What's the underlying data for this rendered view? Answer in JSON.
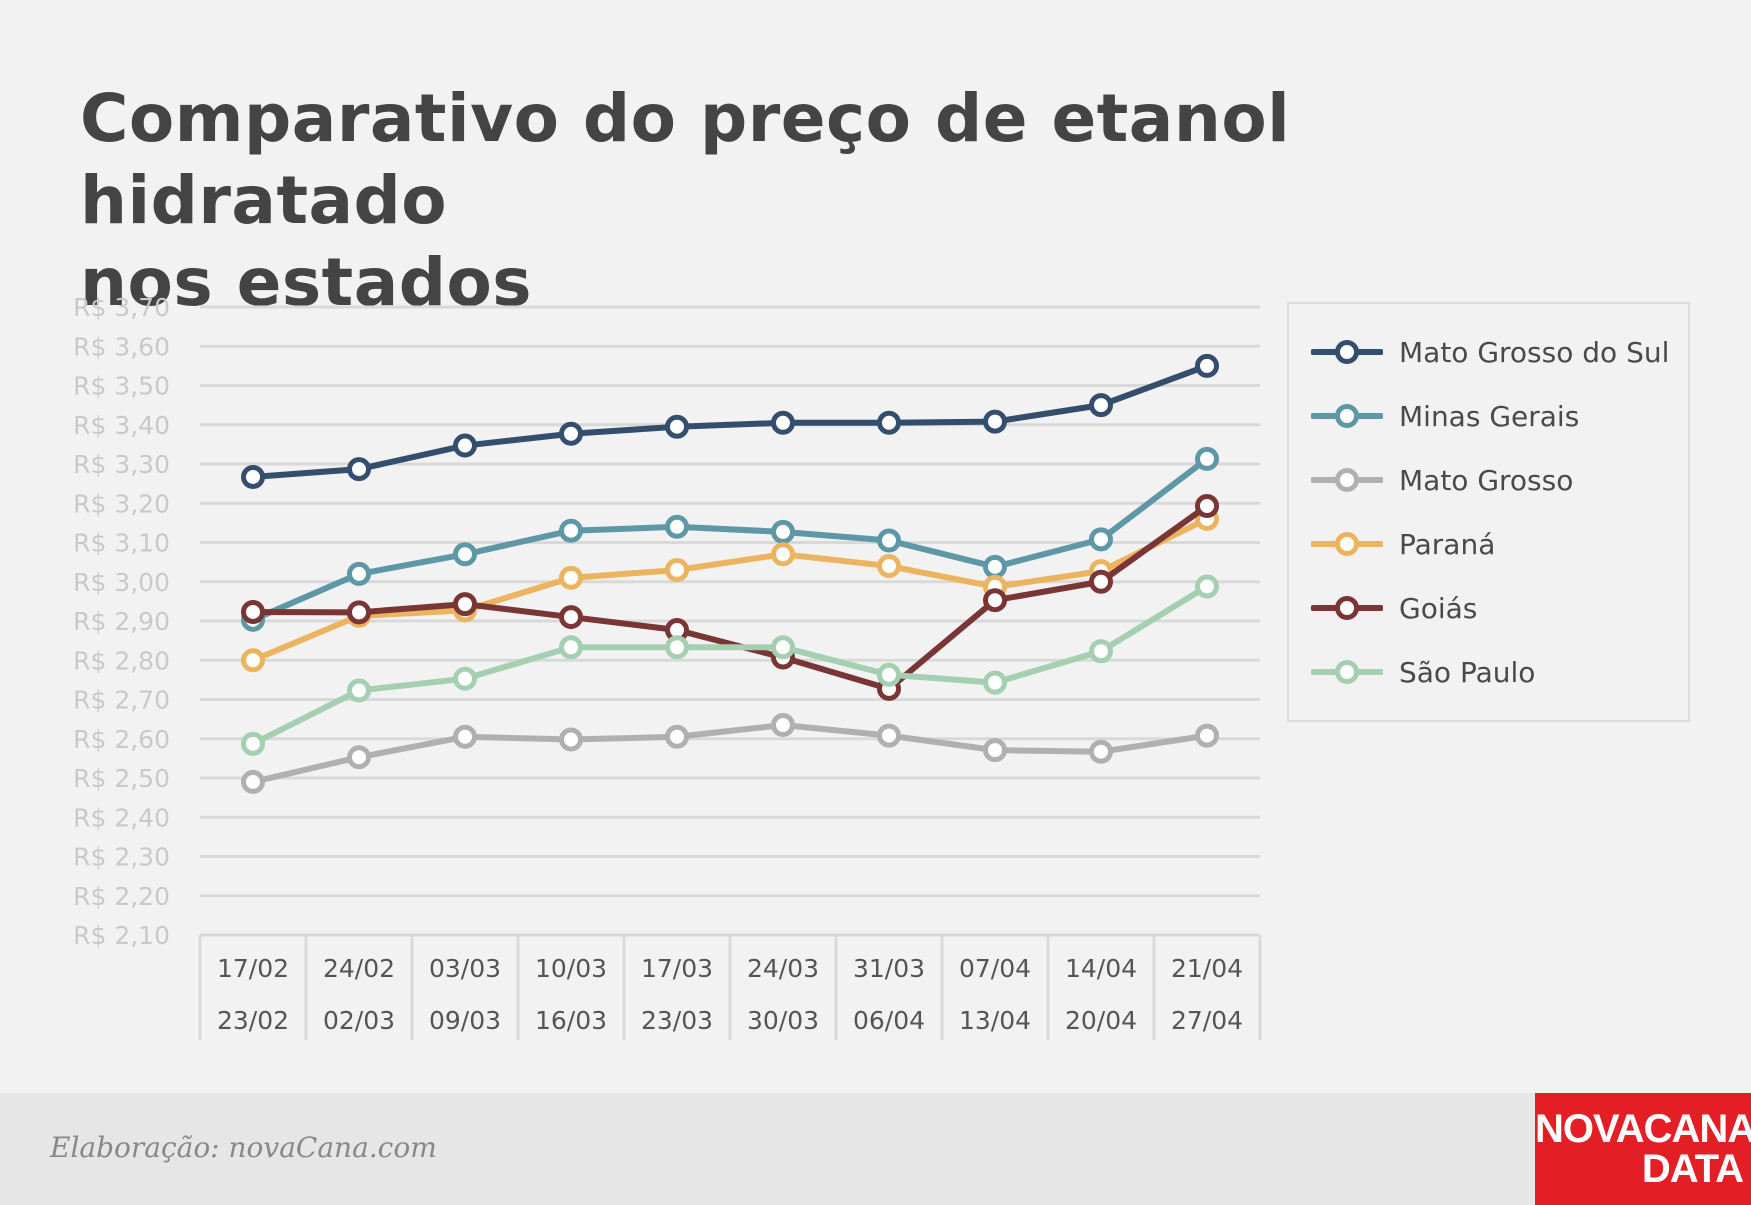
{
  "title": {
    "line1": "Comparativo do preço de etanol hidratado",
    "line2": "nos estados"
  },
  "footer": {
    "credit": "Elaboração: novaCana.com",
    "logo_line1": "NOVACANA",
    "logo_line2": "DATA",
    "logo_color": "#e31e24"
  },
  "chart_data": {
    "type": "line",
    "title": "Comparativo do preço de etanol hidratado nos estados",
    "ylim": [
      2.1,
      3.7
    ],
    "y_ticks": [
      "R$ 3,70",
      "R$ 3,60",
      "R$ 3,50",
      "R$ 3,40",
      "R$ 3,30",
      "R$ 3,20",
      "R$ 3,10",
      "R$ 3,00",
      "R$ 2,90",
      "R$ 2,80",
      "R$ 2,70",
      "R$ 2,60",
      "R$ 2,50",
      "R$ 2,40",
      "R$ 2,30",
      "R$ 2,20",
      "R$ 2,10"
    ],
    "categories": [
      {
        "start": "17/02",
        "end": "23/02"
      },
      {
        "start": "24/02",
        "end": "02/03"
      },
      {
        "start": "03/03",
        "end": "09/03"
      },
      {
        "start": "10/03",
        "end": "16/03"
      },
      {
        "start": "17/03",
        "end": "23/03"
      },
      {
        "start": "24/03",
        "end": "30/03"
      },
      {
        "start": "31/03",
        "end": "06/04"
      },
      {
        "start": "07/04",
        "end": "13/04"
      },
      {
        "start": "14/04",
        "end": "20/04"
      },
      {
        "start": "21/04",
        "end": "27/04"
      }
    ],
    "grid": true,
    "legend_position": "right",
    "series": [
      {
        "name": "Mato Grosso do Sul",
        "color": "#344e6e",
        "values": [
          3.267,
          3.287,
          3.347,
          3.377,
          3.395,
          3.405,
          3.405,
          3.408,
          3.45,
          3.55
        ]
      },
      {
        "name": "Minas Gerais",
        "color": "#5e97a6",
        "values": [
          2.903,
          3.02,
          3.07,
          3.13,
          3.14,
          3.127,
          3.105,
          3.038,
          3.108,
          3.313
        ]
      },
      {
        "name": "Mato Grosso",
        "color": "#b0b0b0",
        "values": [
          2.49,
          2.553,
          2.605,
          2.598,
          2.605,
          2.635,
          2.608,
          2.571,
          2.567,
          2.608
        ]
      },
      {
        "name": "Paraná",
        "color": "#ecb45e",
        "values": [
          2.8,
          2.913,
          2.927,
          3.01,
          3.03,
          3.07,
          3.04,
          2.987,
          3.027,
          3.16
        ]
      },
      {
        "name": "Goiás",
        "color": "#7a3535",
        "values": [
          2.923,
          2.922,
          2.943,
          2.91,
          2.877,
          2.807,
          2.727,
          2.953,
          3.0,
          3.193
        ]
      },
      {
        "name": "São Paulo",
        "color": "#a4cfb0",
        "values": [
          2.587,
          2.723,
          2.753,
          2.833,
          2.833,
          2.833,
          2.763,
          2.743,
          2.823,
          2.988
        ]
      }
    ]
  }
}
